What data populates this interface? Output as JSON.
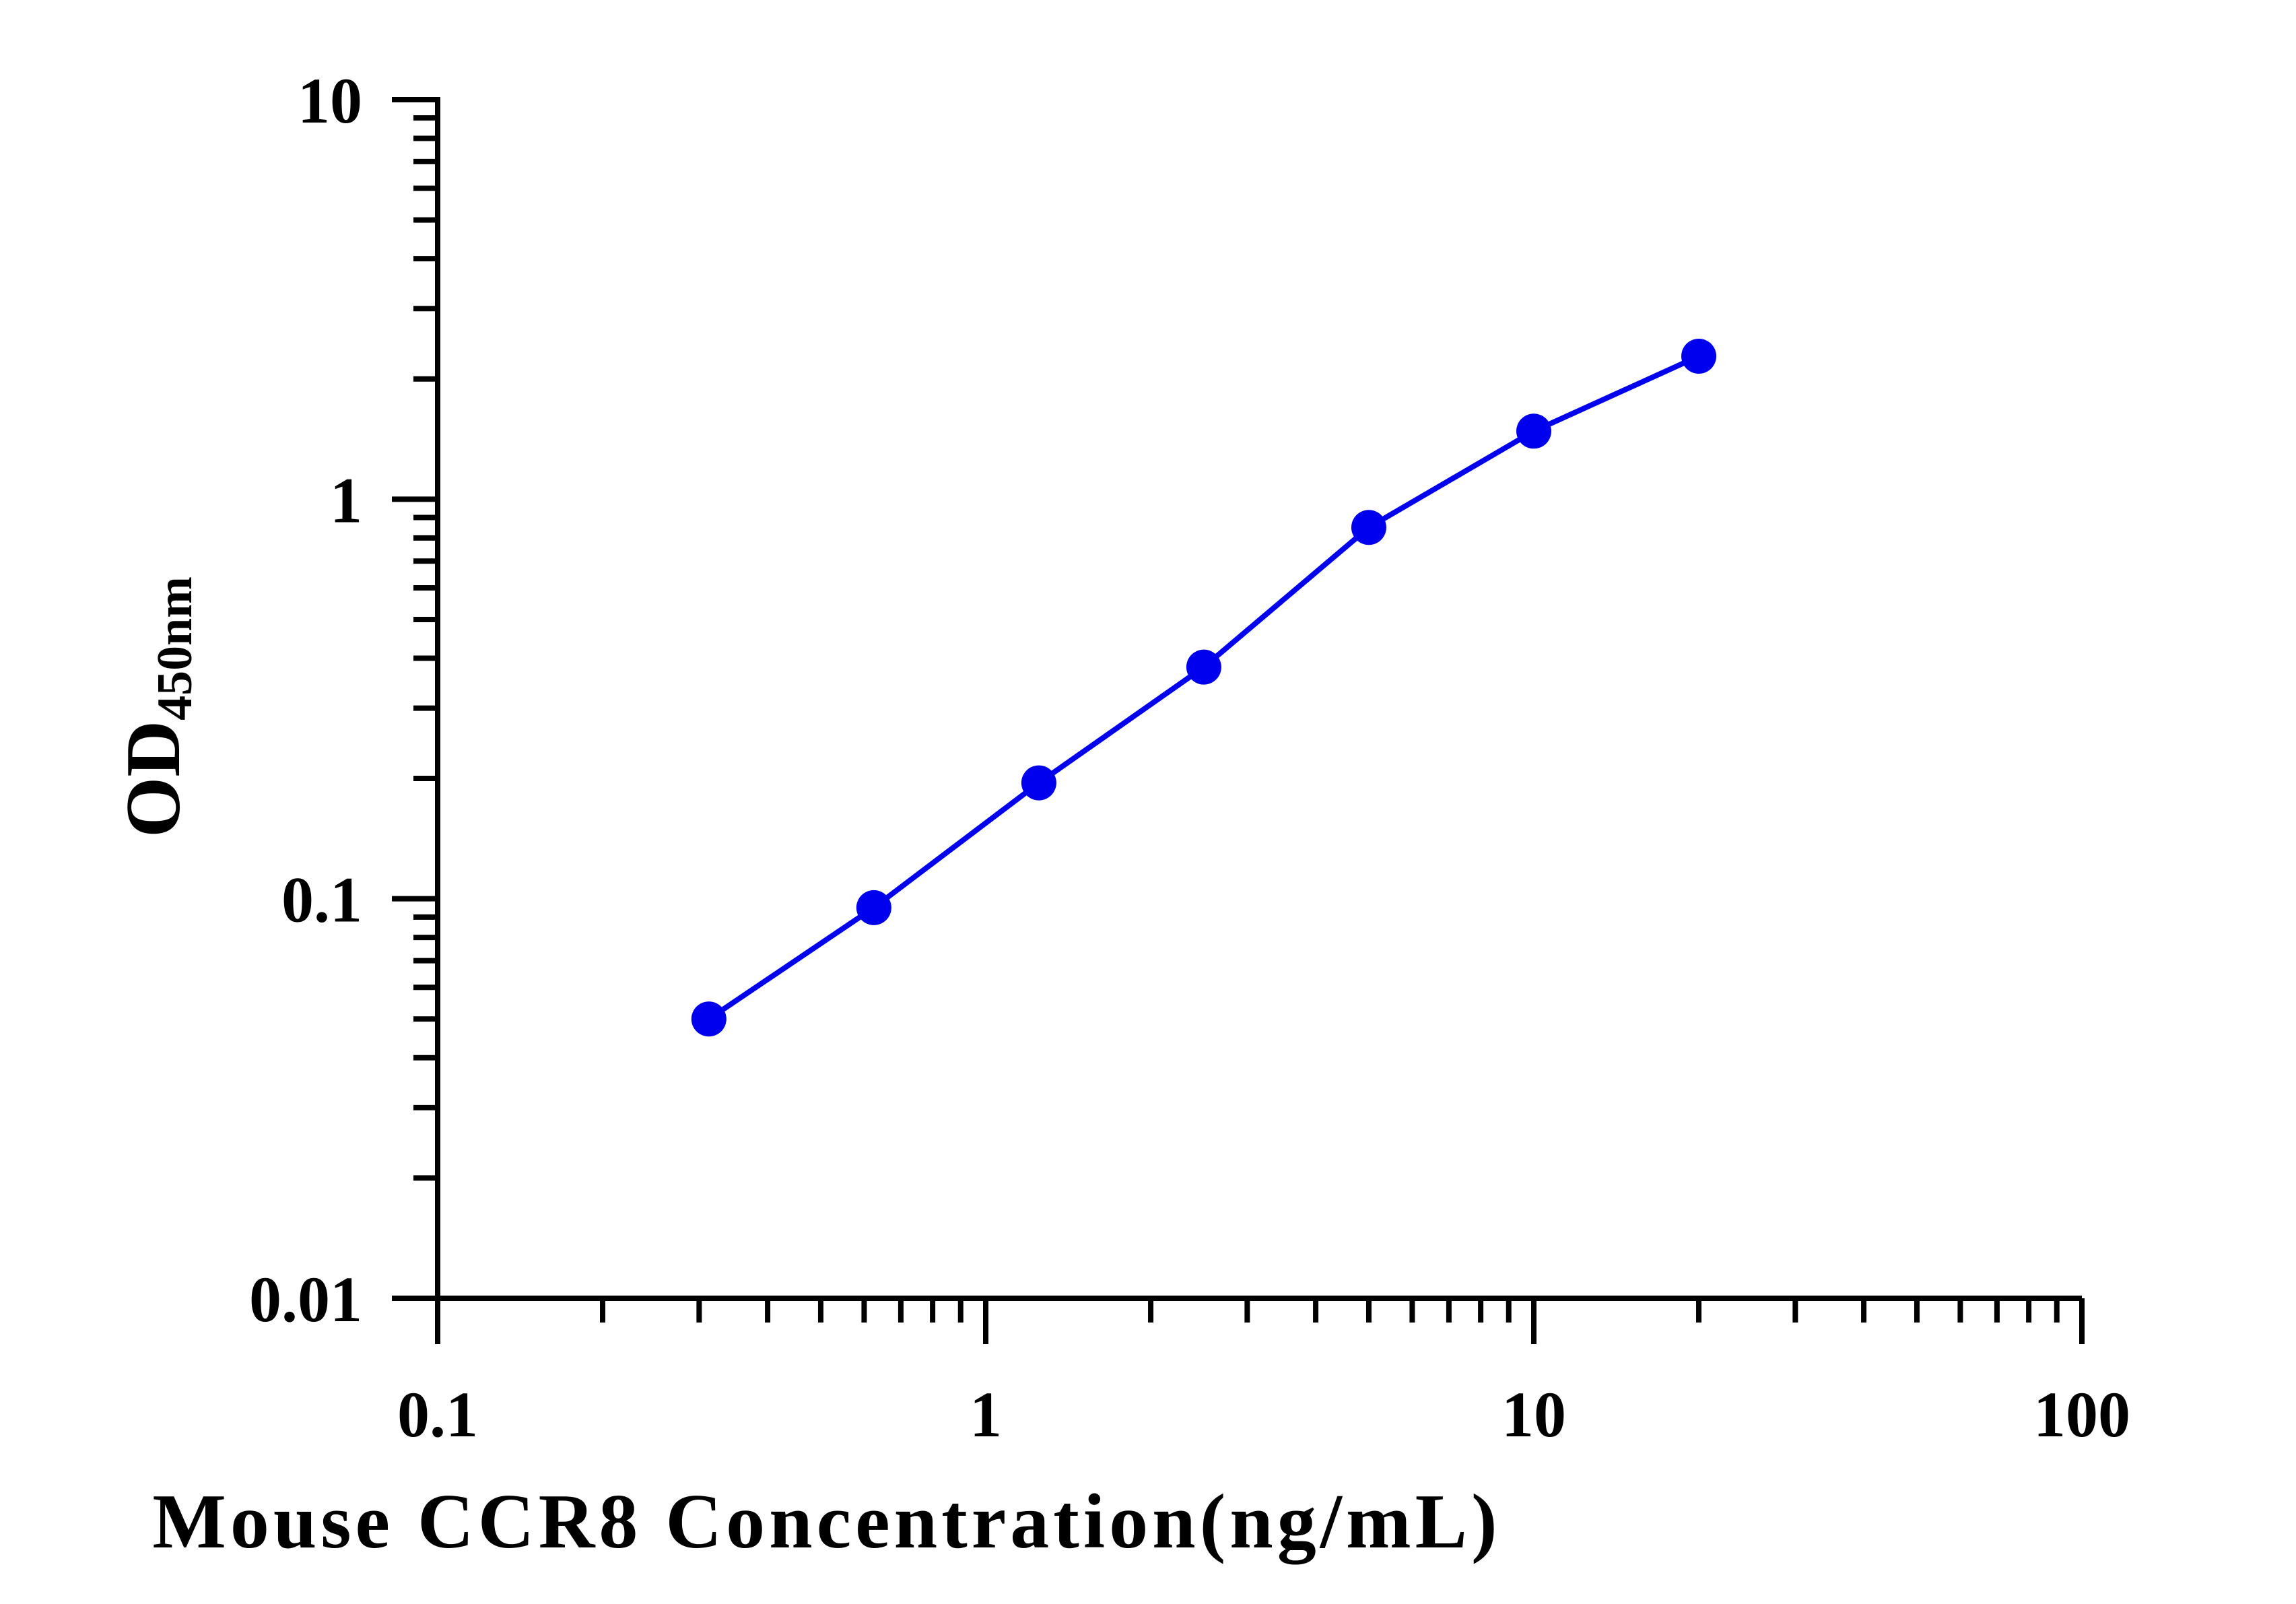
{
  "chart_data": {
    "type": "line",
    "title": "",
    "xlabel": "Mouse CCR8 Concentration(ng/mL)",
    "ylabel_main": "OD",
    "ylabel_sub": "450nm",
    "xscale": "log",
    "yscale": "log",
    "xlim": [
      0.1,
      100
    ],
    "ylim": [
      0.01,
      10
    ],
    "xticks": [
      "0.1",
      "1",
      "10",
      "100"
    ],
    "yticks": [
      "0.01",
      "0.1",
      "1",
      "10"
    ],
    "grid": false,
    "legend": "none",
    "series": [
      {
        "color": "#0000ee",
        "x": [
          0.3125,
          0.625,
          1.25,
          2.5,
          5,
          10,
          20
        ],
        "y": [
          0.05,
          0.095,
          0.195,
          0.38,
          0.85,
          1.48,
          2.28
        ]
      }
    ]
  }
}
